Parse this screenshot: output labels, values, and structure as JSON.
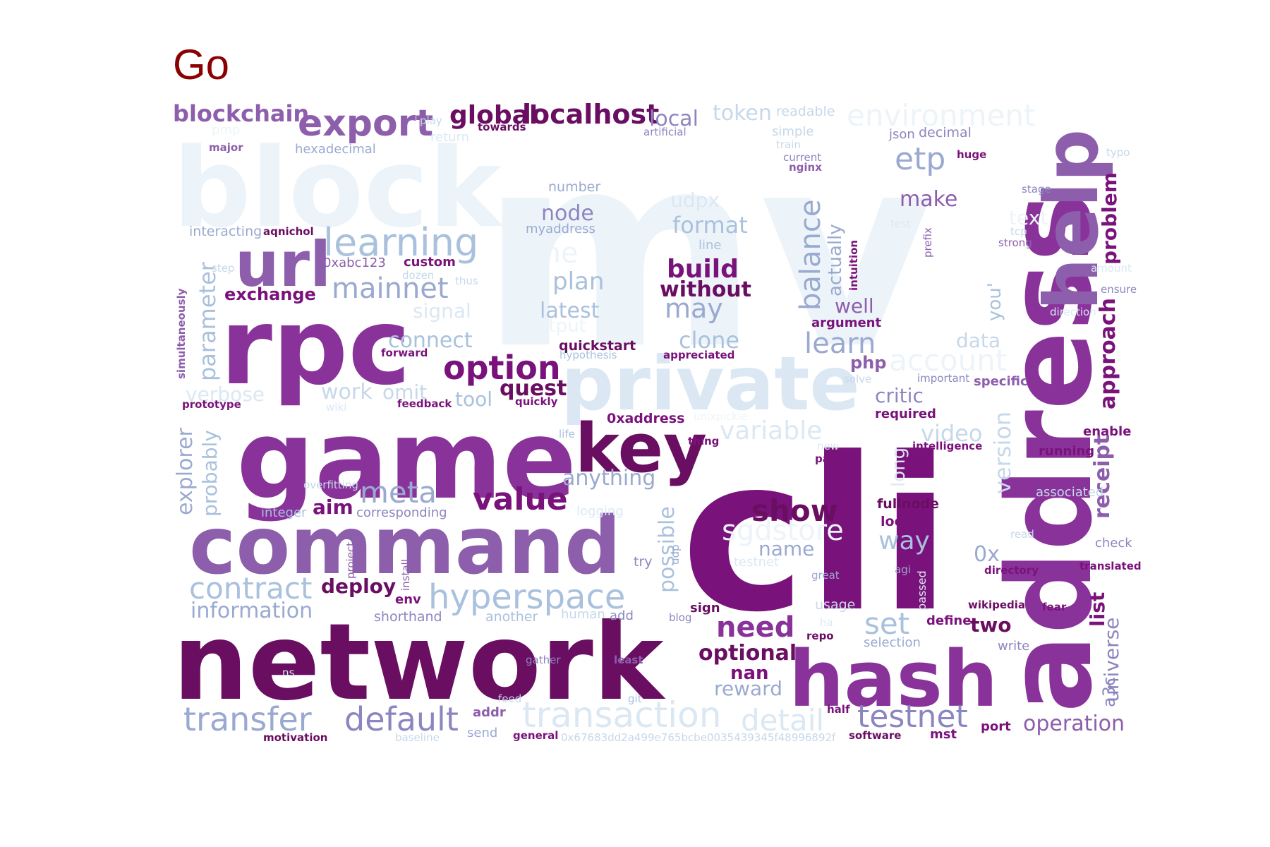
{
  "title": "Go",
  "palette": {
    "c1": "#edf4f9",
    "c2": "#dbe8f3",
    "c3": "#c6d8ea",
    "c4": "#a9c1dd",
    "c5": "#9aa9d0",
    "c6": "#8c86c0",
    "c7": "#8d5eab",
    "c8": "#89339a",
    "c9": "#7a127b",
    "c10": "#6a0e62"
  },
  "words": [
    {
      "text": "mv",
      "color": "c1"
    },
    {
      "text": "block",
      "color": "c1"
    },
    {
      "text": "cli",
      "color": "c9"
    },
    {
      "text": "network",
      "color": "c10"
    },
    {
      "text": "address",
      "color": "c8"
    },
    {
      "text": "game",
      "color": "c8"
    },
    {
      "text": "rpc",
      "color": "c8"
    },
    {
      "text": "command",
      "color": "c7"
    },
    {
      "text": "hash",
      "color": "c8"
    },
    {
      "text": "private",
      "color": "c2"
    },
    {
      "text": "help",
      "color": "c7"
    },
    {
      "text": "key",
      "color": "c10"
    },
    {
      "text": "url",
      "color": "c7"
    },
    {
      "text": "learning",
      "color": "c4"
    },
    {
      "text": "hyperspace",
      "color": "c4"
    },
    {
      "text": "transaction",
      "color": "c2"
    },
    {
      "text": "export",
      "color": "c7"
    },
    {
      "text": "option",
      "color": "c9"
    },
    {
      "text": "environment",
      "color": "c1"
    },
    {
      "text": "transfer",
      "color": "c5"
    },
    {
      "text": "default",
      "color": "c6"
    },
    {
      "text": "testnet",
      "color": "c6"
    },
    {
      "text": "contract",
      "color": "c4"
    },
    {
      "text": "meta",
      "color": "c5"
    },
    {
      "text": "value",
      "color": "c9"
    },
    {
      "text": "mainnet",
      "color": "c5"
    },
    {
      "text": "show",
      "color": "c10"
    },
    {
      "text": "account",
      "color": "c1"
    },
    {
      "text": "detail",
      "color": "c2"
    },
    {
      "text": "sgdstore",
      "color": "c1"
    },
    {
      "text": "localhost",
      "color": "c10"
    },
    {
      "text": "global",
      "color": "c10"
    },
    {
      "text": "blockchain",
      "color": "c7"
    },
    {
      "text": "etp",
      "color": "c5"
    },
    {
      "text": "balance",
      "color": "c5"
    },
    {
      "text": "learn",
      "color": "c5"
    },
    {
      "text": "need",
      "color": "c8"
    },
    {
      "text": "build",
      "color": "c9"
    },
    {
      "text": "without",
      "color": "c10"
    },
    {
      "text": "may",
      "color": "c5"
    },
    {
      "text": "plan",
      "color": "c4"
    },
    {
      "text": "one",
      "color": "c1"
    },
    {
      "text": "variable",
      "color": "c2"
    },
    {
      "text": "set",
      "color": "c4"
    },
    {
      "text": "way",
      "color": "c4"
    },
    {
      "text": "video",
      "color": "c3"
    },
    {
      "text": "optional",
      "color": "c10"
    },
    {
      "text": "operation",
      "color": "c7"
    },
    {
      "text": "information",
      "color": "c5"
    },
    {
      "text": "anything",
      "color": "c5"
    },
    {
      "text": "connect",
      "color": "c4"
    },
    {
      "text": "format",
      "color": "c4"
    },
    {
      "text": "latest",
      "color": "c4"
    },
    {
      "text": "clone",
      "color": "c4"
    },
    {
      "text": "make",
      "color": "c7"
    },
    {
      "text": "node",
      "color": "c6"
    },
    {
      "text": "possible",
      "color": "c4"
    },
    {
      "text": "parameter",
      "color": "c4"
    },
    {
      "text": "explorer",
      "color": "c5"
    },
    {
      "text": "probably",
      "color": "c4"
    },
    {
      "text": "receipt",
      "color": "c7"
    },
    {
      "text": "approach",
      "color": "c9"
    },
    {
      "text": "problem",
      "color": "c9"
    },
    {
      "text": "universe",
      "color": "c6"
    },
    {
      "text": "list",
      "color": "c9"
    },
    {
      "text": "version",
      "color": "c3"
    },
    {
      "text": "quest",
      "color": "c10"
    },
    {
      "text": "tool",
      "color": "c4"
    },
    {
      "text": "work",
      "color": "c3"
    },
    {
      "text": "omit",
      "color": "c3"
    },
    {
      "text": "verbose",
      "color": "c2"
    },
    {
      "text": "signal",
      "color": "c2"
    },
    {
      "text": "exchange",
      "color": "c9"
    },
    {
      "text": "deploy",
      "color": "c10"
    },
    {
      "text": "aim",
      "color": "c9"
    },
    {
      "text": "token",
      "color": "c3"
    },
    {
      "text": "local",
      "color": "c6"
    },
    {
      "text": "name",
      "color": "c5"
    },
    {
      "text": "reward",
      "color": "c5"
    },
    {
      "text": "nan",
      "color": "c9"
    },
    {
      "text": "two",
      "color": "c10"
    },
    {
      "text": "well",
      "color": "c7"
    },
    {
      "text": "critic",
      "color": "c6"
    },
    {
      "text": "actually",
      "color": "c5"
    },
    {
      "text": "data",
      "color": "c3"
    },
    {
      "text": "0x",
      "color": "c5"
    },
    {
      "text": "you'",
      "color": "c4"
    },
    {
      "text": "a3c",
      "color": "c6"
    },
    {
      "text": "udpx",
      "color": "c2"
    },
    {
      "text": "text",
      "color": "c1"
    },
    {
      "text": "php",
      "color": "c7"
    },
    {
      "text": "output",
      "color": "c1"
    },
    {
      "text": "long",
      "color": "c2"
    },
    {
      "text": "number",
      "color": "c5"
    },
    {
      "text": "myaddress",
      "color": "c5"
    },
    {
      "text": "0xabc123",
      "color": "c7"
    },
    {
      "text": "custom",
      "color": "c9"
    },
    {
      "text": "quickstart",
      "color": "c10"
    },
    {
      "text": "0xaddress",
      "color": "c9"
    },
    {
      "text": "fullnode",
      "color": "c10"
    },
    {
      "text": "locally",
      "color": "c9"
    },
    {
      "text": "corresponding",
      "color": "c6"
    },
    {
      "text": "shorthand",
      "color": "c6"
    },
    {
      "text": "another",
      "color": "c4"
    },
    {
      "text": "hexadecimal",
      "color": "c5"
    },
    {
      "text": "interacting",
      "color": "c5"
    },
    {
      "text": "aqnichol",
      "color": "c10"
    },
    {
      "text": "argument",
      "color": "c9"
    },
    {
      "text": "enable",
      "color": "c9"
    },
    {
      "text": "running",
      "color": "c9"
    },
    {
      "text": "associated",
      "color": "c3"
    },
    {
      "text": "check",
      "color": "c6"
    },
    {
      "text": "translated",
      "color": "c9"
    },
    {
      "text": "fear",
      "color": "c9"
    },
    {
      "text": "wikipedia",
      "color": "c10"
    },
    {
      "text": "define",
      "color": "c9"
    },
    {
      "text": "selection",
      "color": "c5"
    },
    {
      "text": "write",
      "color": "c6"
    },
    {
      "text": "port",
      "color": "c9"
    },
    {
      "text": "software",
      "color": "c10"
    },
    {
      "text": "mst",
      "color": "c9"
    },
    {
      "text": "half",
      "color": "c9"
    },
    {
      "text": "repo",
      "color": "c10"
    },
    {
      "text": "usage",
      "color": "c3"
    },
    {
      "text": "sign",
      "color": "c10"
    },
    {
      "text": "blog",
      "color": "c6"
    },
    {
      "text": "add",
      "color": "c6"
    },
    {
      "text": "human",
      "color": "c3"
    },
    {
      "text": "least",
      "color": "c7"
    },
    {
      "text": "gather",
      "color": "c6"
    },
    {
      "text": "git",
      "color": "c4"
    },
    {
      "text": "feed",
      "color": "c3"
    },
    {
      "text": "addr",
      "color": "c7"
    },
    {
      "text": "send",
      "color": "c5"
    },
    {
      "text": "general",
      "color": "c9"
    },
    {
      "text": "baseline",
      "color": "c3"
    },
    {
      "text": "motivation",
      "color": "c10"
    },
    {
      "text": "0x67683dd2a499e765bcbe0035439345f48996892f",
      "color": "c3"
    },
    {
      "text": "env",
      "color": "c9"
    },
    {
      "text": "install",
      "color": "c7"
    },
    {
      "text": "project",
      "color": "c7"
    },
    {
      "text": "try",
      "color": "c6"
    },
    {
      "text": "udp",
      "color": "c5"
    },
    {
      "text": "great",
      "color": "c5"
    },
    {
      "text": "agi",
      "color": "c5"
    },
    {
      "text": "passed",
      "color": "c2"
    },
    {
      "text": "directory",
      "color": "c9"
    },
    {
      "text": "read",
      "color": "c3"
    },
    {
      "text": "part",
      "color": "c9"
    },
    {
      "text": "intelligence",
      "color": "c9"
    },
    {
      "text": "life",
      "color": "c4"
    },
    {
      "text": "thing",
      "color": "c9"
    },
    {
      "text": "unixpickle",
      "color": "c1"
    },
    {
      "text": "feedback",
      "color": "c9"
    },
    {
      "text": "quickly",
      "color": "c9"
    },
    {
      "text": "wiki",
      "color": "c2"
    },
    {
      "text": "prototype",
      "color": "c9"
    },
    {
      "text": "simultaneously",
      "color": "c7"
    },
    {
      "text": "forward",
      "color": "c9"
    },
    {
      "text": "hypothesis",
      "color": "c4"
    },
    {
      "text": "appreciated",
      "color": "c9"
    },
    {
      "text": "solve",
      "color": "c3"
    },
    {
      "text": "important",
      "color": "c6"
    },
    {
      "text": "specific",
      "color": "c7"
    },
    {
      "text": "required",
      "color": "c9"
    },
    {
      "text": "intuition",
      "color": "c9"
    },
    {
      "text": "prefix",
      "color": "c7"
    },
    {
      "text": "strong",
      "color": "c7"
    },
    {
      "text": "tcp",
      "color": "c3"
    },
    {
      "text": "stage",
      "color": "c6"
    },
    {
      "text": "typo",
      "color": "c3"
    },
    {
      "text": "huge",
      "color": "c9"
    },
    {
      "text": "decimal",
      "color": "c6"
    },
    {
      "text": "json",
      "color": "c6"
    },
    {
      "text": "readable",
      "color": "c3"
    },
    {
      "text": "simple",
      "color": "c3"
    },
    {
      "text": "train",
      "color": "c3"
    },
    {
      "text": "current",
      "color": "c6"
    },
    {
      "text": "nginx",
      "color": "c7"
    },
    {
      "text": "artificial",
      "color": "c6"
    },
    {
      "text": "towards",
      "color": "c10"
    },
    {
      "text": "play",
      "color": "c3"
    },
    {
      "text": "return",
      "color": "c2"
    },
    {
      "text": "major",
      "color": "c7"
    },
    {
      "text": "pmp",
      "color": "c1"
    },
    {
      "text": "step",
      "color": "c3"
    },
    {
      "text": "dozen",
      "color": "c3"
    },
    {
      "text": "thus",
      "color": "c3"
    },
    {
      "text": "line",
      "color": "c4"
    },
    {
      "text": "integer",
      "color": "c4"
    },
    {
      "text": "overfitting",
      "color": "c3"
    },
    {
      "text": "logging",
      "color": "c2"
    },
    {
      "text": "testnet",
      "color": "c2"
    },
    {
      "text": "ensure",
      "color": "c6"
    },
    {
      "text": "amount",
      "color": "c2"
    },
    {
      "text": "direction",
      "color": "c2"
    },
    {
      "text": "new",
      "color": "c2"
    },
    {
      "text": "ha",
      "color": "c2"
    },
    {
      "text": "ns",
      "color": "c2"
    },
    {
      "text": "test",
      "color": "c2"
    }
  ]
}
